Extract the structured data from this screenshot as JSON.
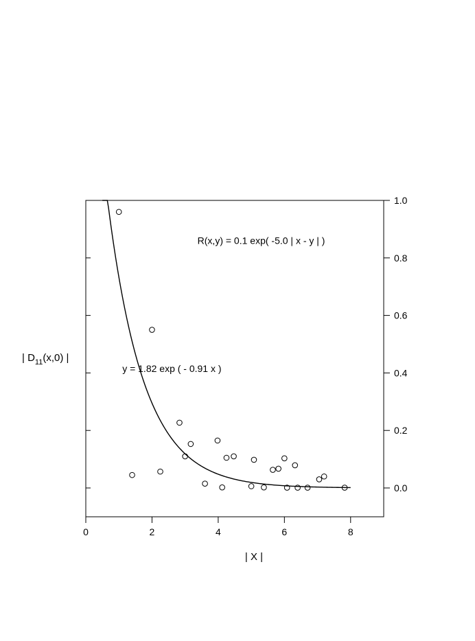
{
  "chart_data": {
    "type": "scatter",
    "xlabel": "| X |",
    "ylabel": {
      "prefix": "| D",
      "subscript": "11",
      "suffix": "(x,0) |"
    },
    "xlim": [
      0,
      9
    ],
    "ylim": [
      -0.1,
      1.0
    ],
    "x_ticks": [
      0,
      2,
      4,
      6,
      8
    ],
    "x_tick_labels": [
      "0",
      "2",
      "4",
      "6",
      "8"
    ],
    "y_ticks": [
      0.0,
      0.2,
      0.4,
      0.6,
      0.8,
      1.0
    ],
    "y_tick_labels": [
      "0.0",
      "0.2",
      "0.4",
      "0.6",
      "0.8",
      "1.0"
    ],
    "y_axis_side": "right",
    "grid": false,
    "legend": "none",
    "annotations": [
      {
        "text": "R(x,y) = 0.1 exp( -5.0 | x - y | )",
        "x": 5.3,
        "y": 0.86
      },
      {
        "text": "y = 1.82 exp ( - 0.91 x )",
        "x": 2.6,
        "y": 0.415
      }
    ],
    "series": [
      {
        "kind": "points",
        "marker": "open-circle",
        "points": [
          [
            1.0,
            0.96
          ],
          [
            1.4,
            0.045
          ],
          [
            2.0,
            0.55
          ],
          [
            2.25,
            0.057
          ],
          [
            2.83,
            0.227
          ],
          [
            3.0,
            0.11
          ],
          [
            3.17,
            0.153
          ],
          [
            3.6,
            0.015
          ],
          [
            3.98,
            0.165
          ],
          [
            4.12,
            0.002
          ],
          [
            4.25,
            0.105
          ],
          [
            4.47,
            0.11
          ],
          [
            5.0,
            0.006
          ],
          [
            5.08,
            0.098
          ],
          [
            5.38,
            0.002
          ],
          [
            5.65,
            0.063
          ],
          [
            5.82,
            0.067
          ],
          [
            6.0,
            0.103
          ],
          [
            6.08,
            0.001
          ],
          [
            6.32,
            0.079
          ],
          [
            6.4,
            0.001
          ],
          [
            6.7,
            0.001
          ],
          [
            7.05,
            0.03
          ],
          [
            7.2,
            0.04
          ],
          [
            7.82,
            0.001
          ]
        ]
      },
      {
        "kind": "fit-curve",
        "formula": "y = 1.82 exp ( - 0.91 x )",
        "a": 1.82,
        "b": -0.91,
        "x_range": [
          0.5,
          8.0
        ],
        "color": "#000000"
      }
    ]
  }
}
